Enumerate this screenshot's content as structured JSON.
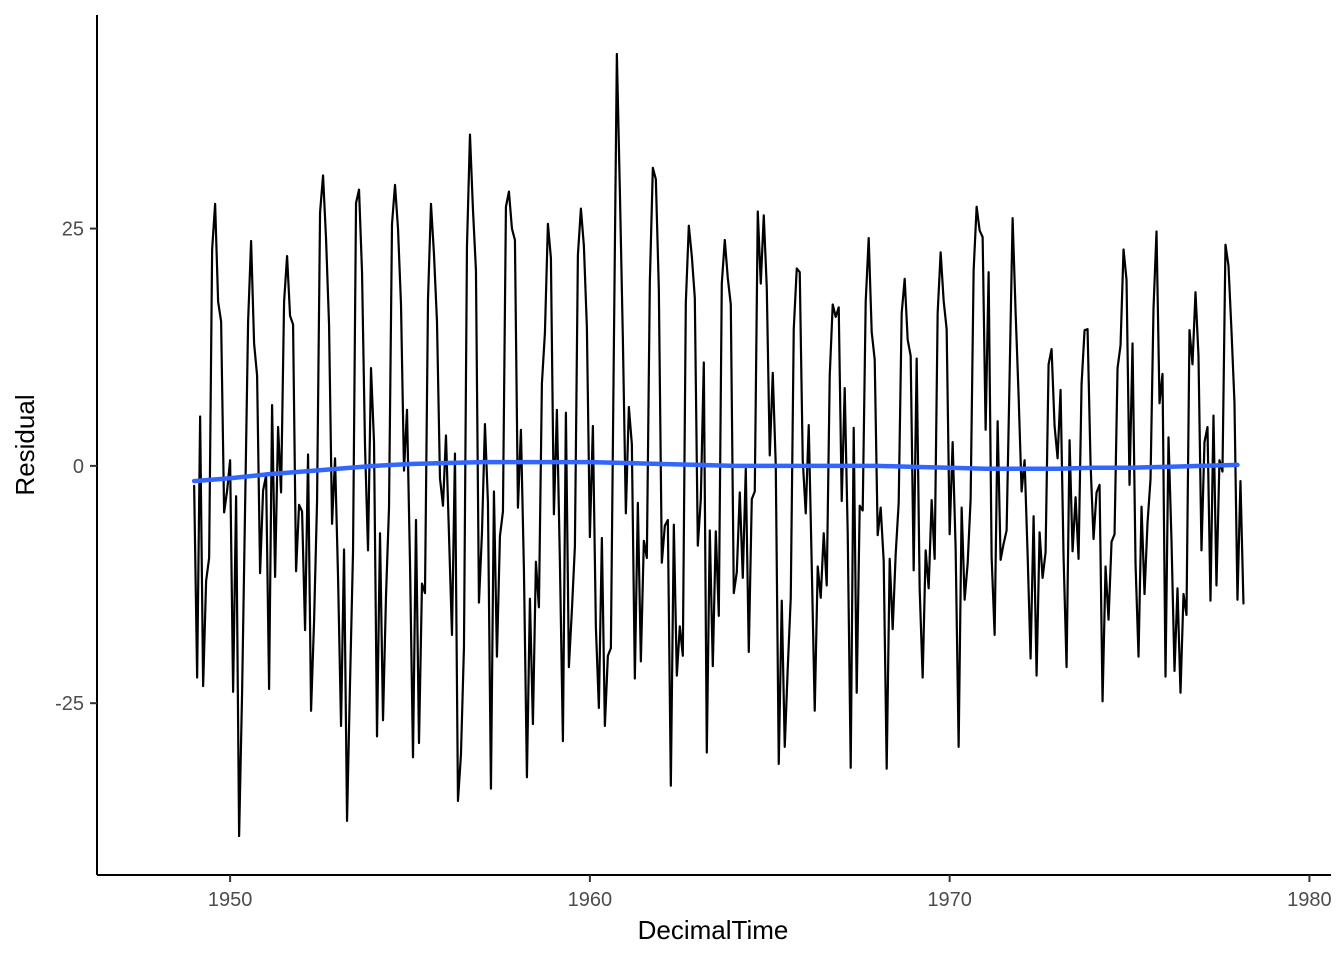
{
  "chart_data": {
    "type": "line",
    "title": "",
    "xlabel": "DecimalTime",
    "ylabel": "Residual",
    "xlim": [
      1946.3,
      1980.6
    ],
    "ylim": [
      -43.1,
      47.5
    ],
    "x_ticks": [
      1950,
      1960,
      1970,
      1980
    ],
    "x_tick_labels": [
      "1950",
      "1960",
      "1970",
      "1980"
    ],
    "y_ticks": [
      -25,
      0,
      25
    ],
    "y_tick_labels": [
      "-25",
      "0",
      "25"
    ],
    "grid": false,
    "legend": "none",
    "series": [
      {
        "type": "line",
        "color": "#000000",
        "x_start": 1949.0,
        "x_step": 0.0833333,
        "values": [
          -2.1,
          -22.3,
          5.2,
          -23.2,
          -12.1,
          -9.7,
          22.8,
          27.6,
          17.3,
          15.2,
          -4.9,
          -2.6,
          0.6,
          -23.8,
          -3.2,
          -39.0,
          -23.8,
          -4.3,
          15.2,
          23.7,
          12.9,
          9.5,
          -11.3,
          -2.6,
          -1.0,
          -23.5,
          6.4,
          -11.7,
          4.1,
          -2.8,
          17.3,
          22.1,
          15.8,
          14.9,
          -11.1,
          -4.1,
          -4.8,
          -17.3,
          1.2,
          -25.8,
          -16.4,
          -3.7,
          26.7,
          30.6,
          23.9,
          14.9,
          -6.1,
          0.8,
          -11.7,
          -27.4,
          -8.8,
          -37.4,
          -22.8,
          -9.0,
          27.7,
          29.1,
          20.4,
          2.0,
          -8.9,
          10.3,
          2.5,
          -28.5,
          -7.1,
          -26.8,
          -13.7,
          -4.4,
          25.5,
          29.6,
          25.0,
          17.0,
          -0.5,
          5.9,
          -10.2,
          -30.7,
          -5.7,
          -29.2,
          -12.4,
          -13.4,
          17.5,
          27.6,
          22.3,
          15.2,
          -1.3,
          -4.2,
          3.2,
          -7.2,
          -17.8,
          1.3,
          -35.3,
          -30.4,
          -19.1,
          23.1,
          34.9,
          27.0,
          20.6,
          -14.4,
          -7.1,
          4.4,
          -3.9,
          -34.0,
          -2.7,
          -20.1,
          -7.4,
          -4.8,
          27.3,
          28.9,
          25.0,
          23.8,
          -4.4,
          3.8,
          -10.9,
          -32.8,
          -14.0,
          -27.2,
          -10.1,
          -14.9,
          8.7,
          14.0,
          25.5,
          21.9,
          -5.1,
          5.9,
          -10.1,
          -29.0,
          5.6,
          -21.2,
          -15.2,
          -8.5,
          22.2,
          27.1,
          23.2,
          14.6,
          -7.5,
          4.2,
          -17.0,
          -25.5,
          -7.6,
          -27.4,
          -20.0,
          -19.2,
          12.5,
          43.4,
          29.0,
          13.4,
          -5.0,
          6.2,
          2.3,
          -22.4,
          -3.9,
          -20.6,
          -7.9,
          -9.7,
          19.4,
          31.4,
          30.2,
          18.6,
          -10.2,
          -6.3,
          -5.7,
          -33.7,
          -6.2,
          -22.1,
          -16.9,
          -20.0,
          17.2,
          25.3,
          22.1,
          17.7,
          -8.4,
          -3.5,
          10.9,
          -30.2,
          -6.8,
          -21.1,
          -6.9,
          -15.8,
          19.2,
          23.8,
          19.8,
          17.0,
          -13.4,
          -11.2,
          -2.8,
          -11.8,
          -0.3,
          -19.6,
          -3.5,
          -2.7,
          26.8,
          19.2,
          26.4,
          18.8,
          1.1,
          9.8,
          0.1,
          -31.4,
          -14.2,
          -29.6,
          -21.3,
          -13.9,
          14.4,
          20.8,
          20.4,
          0.6,
          -5.0,
          4.3,
          -10.5,
          -25.8,
          -10.6,
          -13.9,
          -7.1,
          -12.6,
          9.5,
          17.0,
          15.7,
          16.7,
          -3.7,
          8.2,
          -7.1,
          -31.8,
          4.0,
          -23.9,
          -4.2,
          -4.7,
          17.3,
          24.0,
          14.1,
          11.2,
          -7.3,
          -4.4,
          -10.0,
          -31.9,
          -9.8,
          -17.2,
          -9.3,
          -3.9,
          16.1,
          19.7,
          13.3,
          11.6,
          -11.0,
          11.3,
          -13.0,
          -22.3,
          -8.9,
          -12.9,
          -3.6,
          -9.8,
          16.1,
          22.5,
          17.4,
          14.4,
          -7.2,
          2.5,
          -8.7,
          -29.6,
          -4.4,
          -14.1,
          -10.3,
          -3.5,
          20.6,
          27.3,
          24.8,
          24.1,
          3.8,
          20.4,
          -9.6,
          -17.8,
          4.7,
          -9.9,
          -8.2,
          -6.8,
          9.5,
          26.1,
          16.2,
          7.4,
          -2.7,
          0.6,
          -9.3,
          -20.3,
          -5.3,
          -22.1,
          -7.0,
          -11.8,
          -9.1,
          10.7,
          12.3,
          4.2,
          0.8,
          8.0,
          -9.6,
          -21.2,
          2.7,
          -9.0,
          -3.3,
          -9.8,
          8.6,
          14.3,
          14.4,
          0.2,
          -7.7,
          -2.8,
          -2.0,
          -24.8,
          -10.6,
          -16.2,
          -8.0,
          -7.2,
          10.3,
          12.7,
          22.8,
          19.6,
          -2.0,
          12.9,
          -10.3,
          -20.1,
          -4.3,
          -13.5,
          -6.0,
          -1.4,
          16.6,
          24.7,
          6.6,
          9.7,
          -22.2,
          3.0,
          -7.9,
          -21.6,
          -12.9,
          -23.9,
          -13.5,
          -15.7,
          14.3,
          10.7,
          18.3,
          11.6,
          -8.9,
          2.5,
          4.1,
          -14.2,
          5.3,
          -12.6,
          0.6,
          -0.6,
          23.3,
          21.1,
          14.3,
          6.7,
          -14.1,
          -1.6,
          -14.5
        ]
      },
      {
        "type": "smooth",
        "color": "#3366ff",
        "x": [
          1949.0,
          1950.0,
          1951.0,
          1952.0,
          1953.0,
          1954.0,
          1955.0,
          1956.0,
          1957.0,
          1958.0,
          1959.0,
          1960.0,
          1961.0,
          1962.0,
          1963.0,
          1964.0,
          1965.0,
          1966.0,
          1967.0,
          1968.0,
          1969.0,
          1970.0,
          1971.0,
          1972.0,
          1973.0,
          1974.0,
          1975.0,
          1976.0,
          1977.0,
          1978.0
        ],
        "values": [
          -1.6,
          -1.3,
          -0.9,
          -0.6,
          -0.3,
          0.0,
          0.2,
          0.3,
          0.4,
          0.4,
          0.4,
          0.4,
          0.3,
          0.2,
          0.1,
          0.0,
          0.0,
          0.0,
          0.0,
          0.0,
          -0.1,
          -0.2,
          -0.3,
          -0.3,
          -0.3,
          -0.2,
          -0.2,
          -0.1,
          0.0,
          0.1
        ]
      }
    ]
  }
}
